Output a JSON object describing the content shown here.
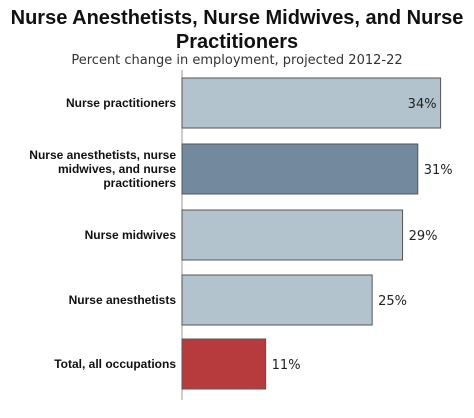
{
  "chart_data": {
    "type": "bar",
    "orientation": "horizontal",
    "title": "Nurse Anesthetists, Nurse Midwives, and Nurse Practitioners",
    "subtitle": "Percent change in employment, projected 2012-22",
    "categories": [
      [
        "Nurse practitioners"
      ],
      [
        "Nurse anesthetists, nurse",
        "midwives, and nurse",
        "practitioners"
      ],
      [
        "Nurse midwives"
      ],
      [
        "Nurse anesthetists"
      ],
      [
        "Total, all occupations"
      ]
    ],
    "values": [
      34,
      31,
      29,
      25,
      11
    ],
    "value_labels": [
      "34%",
      "31%",
      "29%",
      "25%",
      "11%"
    ],
    "colors": [
      "#b3c3ce",
      "#72899e",
      "#b3c3ce",
      "#b3c3ce",
      "#b73a3d"
    ],
    "xlim": [
      0,
      35.5
    ],
    "grid": false,
    "legend": "none"
  }
}
